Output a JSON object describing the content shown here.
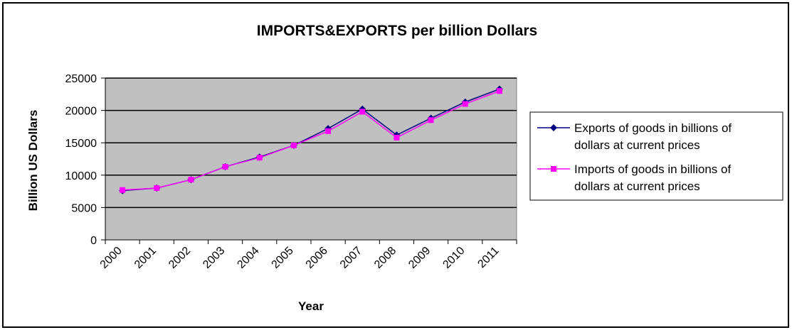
{
  "chart_data": {
    "type": "line",
    "title": "IMPORTS&EXPORTS per billion Dollars",
    "xlabel": "Year",
    "ylabel": "Billion US Dollars",
    "categories": [
      "2000",
      "2001",
      "2002",
      "2003",
      "2004",
      "2005",
      "2006",
      "2007",
      "2008",
      "2009",
      "2010",
      "2011"
    ],
    "ylim": [
      0,
      25000
    ],
    "yticks": [
      "0",
      "5000",
      "10000",
      "15000",
      "20000",
      "25000"
    ],
    "grid": true,
    "legend_position": "right",
    "series": [
      {
        "name": "Exports of goods in billions of dollars at current prices",
        "legend_lines": [
          "Exports of goods in billions of",
          "dollars at current prices"
        ],
        "color": "#000080",
        "marker": "diamond",
        "values": [
          7600,
          8000,
          9300,
          11300,
          12800,
          14600,
          17200,
          20200,
          16200,
          18800,
          21300,
          23300
        ]
      },
      {
        "name": "Imports of goods in billions of dollars at current prices",
        "legend_lines": [
          "Imports of goods in billions of",
          "dollars at current prices"
        ],
        "color": "#ff00ff",
        "marker": "square",
        "values": [
          7700,
          8000,
          9300,
          11300,
          12700,
          14600,
          16800,
          19800,
          15800,
          18500,
          21000,
          23000
        ]
      }
    ],
    "plot_background": "#c0c0c0"
  }
}
